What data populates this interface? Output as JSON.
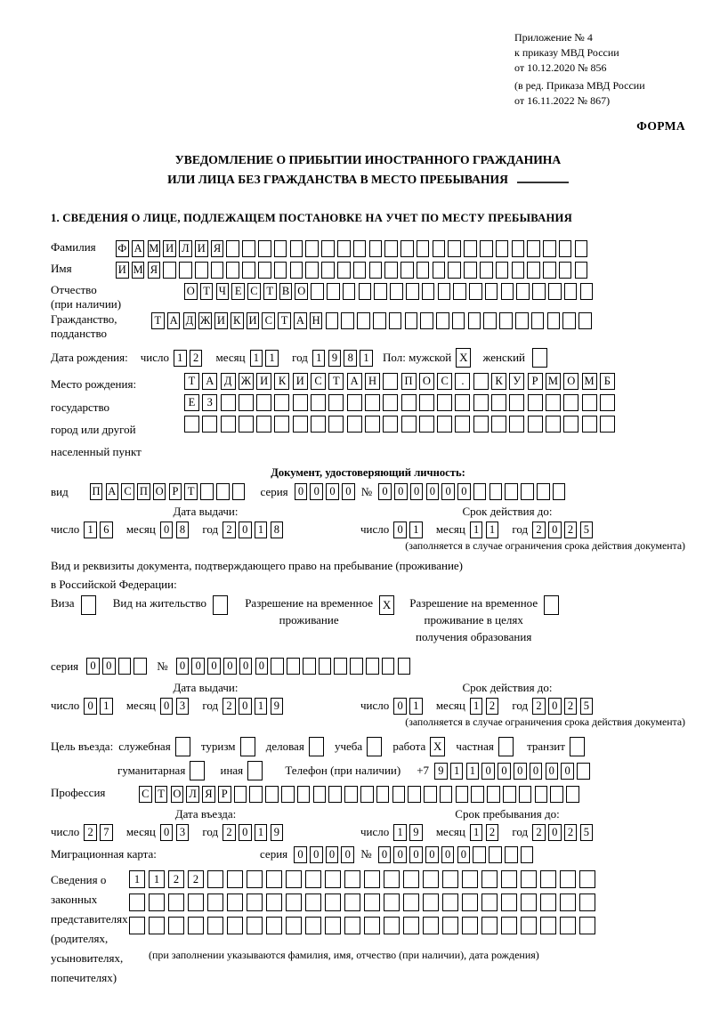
{
  "annex": {
    "line1": "Приложение № 4",
    "line2": "к приказу МВД России",
    "line3": "от 10.12.2020 № 856",
    "note1": "(в ред. Приказа МВД России",
    "note2": "от 16.11.2022 № 867)"
  },
  "form_label": "ФОРМА",
  "title": {
    "line1": "УВЕДОМЛЕНИЕ О ПРИБЫТИИ ИНОСТРАННОГО ГРАЖДАНИНА",
    "line2": "ИЛИ ЛИЦА БЕЗ ГРАЖДАНСТВА В МЕСТО ПРЕБЫВАНИЯ"
  },
  "section1": "1. СВЕДЕНИЯ О ЛИЦЕ, ПОДЛЕЖАЩЕМ ПОСТАНОВКЕ НА УЧЕТ ПО МЕСТУ ПРЕБЫВАНИЯ",
  "labels": {
    "day": "число",
    "month": "месяц",
    "year": "год",
    "seriya": "серия",
    "no": "№",
    "issue_date": "Дата выдачи:",
    "valid_until": "Срок действия до:",
    "entry_date": "Дата въезда:",
    "stay_until": "Срок пребывания до:",
    "restriction_note": "(заполняется в случае ограничения срока действия документа)",
    "phone": "Телефон (при наличии)",
    "phone_prefix": "+7"
  },
  "surname": {
    "label": "Фамилия",
    "boxes": {
      "chars": "ФАМИЛИЯ",
      "len": 30
    }
  },
  "firstname": {
    "label": "Имя",
    "boxes": {
      "chars": "ИМЯ",
      "len": 30
    }
  },
  "patronymic": {
    "label": "Отчество",
    "sublabel": "(при наличии)",
    "boxes": {
      "chars": "ОТЧЕСТВО",
      "len": 26
    }
  },
  "citizenship": {
    "label": "Гражданство,",
    "sublabel": "подданство",
    "boxes": {
      "chars": "ТАДЖИКИСТАН",
      "len": 28
    }
  },
  "birth": {
    "label": "Дата рождения:",
    "day": {
      "chars": "12"
    },
    "month": {
      "chars": "11"
    },
    "year": {
      "chars": "1981"
    },
    "sex_label": "Пол: мужской",
    "male_box": {
      "chars": "X",
      "len": 1
    },
    "female_label": "женский",
    "female_box": {
      "chars": "",
      "len": 1
    }
  },
  "birth_place": {
    "label": "Место рождения:",
    "sub1": "государство",
    "sub2": "город или другой",
    "sub3": "населенный пункт",
    "row1": {
      "chars": "ТАДЖИКИСТАН ПОС. КУРМОМБ",
      "len": 24
    },
    "row2": {
      "chars": "ЕЗ",
      "len": 24
    },
    "row3": {
      "chars": "",
      "len": 24
    }
  },
  "identity_doc": {
    "heading": "Документ, удостоверяющий личность:",
    "kind_label": "вид",
    "kind": {
      "chars": "ПАСПОРТ",
      "len": 10
    },
    "seriya": {
      "chars": "0000",
      "len": 4
    },
    "number": {
      "chars": "000000",
      "len": 12
    },
    "issue": {
      "day": {
        "chars": "16"
      },
      "month": {
        "chars": "08"
      },
      "year": {
        "chars": "2018"
      }
    },
    "valid": {
      "day": {
        "chars": "01"
      },
      "month": {
        "chars": "11"
      },
      "year": {
        "chars": "2025"
      }
    }
  },
  "residence": {
    "intro1": "Вид и реквизиты документа, подтверждающего право на пребывание (проживание)",
    "intro2": "в Российской Федерации:",
    "opt1": {
      "line1": "Виза",
      "box": {
        "chars": "",
        "len": 1
      }
    },
    "opt2": {
      "line1": "Вид на жительство",
      "box": {
        "chars": "",
        "len": 1
      }
    },
    "opt3": {
      "line1": "Разрешение на временное",
      "line2": "проживание",
      "box": {
        "chars": "X",
        "len": 1
      }
    },
    "opt4": {
      "line1": "Разрешение на временное",
      "line2": "проживание в целях",
      "line3": "получения образования",
      "box": {
        "chars": "",
        "len": 1
      }
    },
    "seriya": {
      "chars": "00",
      "len": 4
    },
    "number": {
      "chars": "000000",
      "len": 15
    },
    "issue": {
      "day": {
        "chars": "01"
      },
      "month": {
        "chars": "03"
      },
      "year": {
        "chars": "2019"
      }
    },
    "valid": {
      "day": {
        "chars": "01"
      },
      "month": {
        "chars": "12"
      },
      "year": {
        "chars": "2025"
      }
    }
  },
  "purpose": {
    "label": "Цель въезда:",
    "items": [
      {
        "label": "служебная",
        "box": {
          "chars": "",
          "len": 1
        }
      },
      {
        "label": "туризм",
        "box": {
          "chars": "",
          "len": 1
        }
      },
      {
        "label": "деловая",
        "box": {
          "chars": "",
          "len": 1
        }
      },
      {
        "label": "учеба",
        "box": {
          "chars": "",
          "len": 1
        }
      },
      {
        "label": "работа",
        "box": {
          "chars": "X",
          "len": 1
        }
      },
      {
        "label": "частная",
        "box": {
          "chars": "",
          "len": 1
        }
      },
      {
        "label": "транзит",
        "box": {
          "chars": "",
          "len": 1
        }
      },
      {
        "label": "гуманитарная",
        "box": {
          "chars": "",
          "len": 1
        }
      },
      {
        "label": "иная",
        "box": {
          "chars": "",
          "len": 1
        }
      }
    ],
    "phone": {
      "chars": "911000000",
      "len": 10
    }
  },
  "profession": {
    "label": "Профессия",
    "boxes": {
      "chars": "СТОЛЯР",
      "len": 28
    }
  },
  "entry": {
    "arrive": {
      "day": {
        "chars": "27"
      },
      "month": {
        "chars": "03"
      },
      "year": {
        "chars": "2019"
      }
    },
    "stay": {
      "day": {
        "chars": "19"
      },
      "month": {
        "chars": "12"
      },
      "year": {
        "chars": "2025"
      }
    }
  },
  "migration_card": {
    "label": "Миграционная карта:",
    "seriya": {
      "chars": "0000",
      "len": 4
    },
    "number": {
      "chars": "000000",
      "len": 10
    }
  },
  "representatives": {
    "l1": "Сведения о",
    "l2": "законных",
    "l3": "представителях",
    "l4": "(родителях,",
    "l5": "усыновителях,",
    "l6": "попечителях)",
    "row1": {
      "chars": "1122",
      "len": 24
    },
    "row2": {
      "chars": "",
      "len": 24
    },
    "row3": {
      "chars": "",
      "len": 24
    },
    "note": "(при заполнении указываются фамилия, имя, отчество (при наличии), дата рождения)"
  }
}
